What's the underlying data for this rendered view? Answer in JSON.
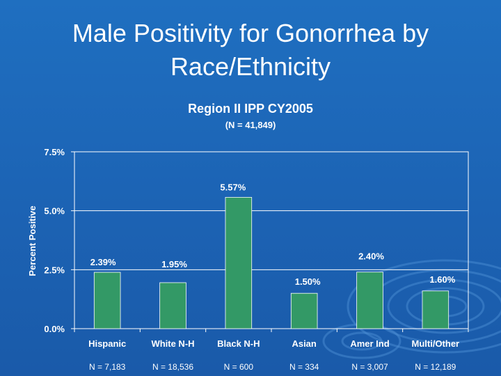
{
  "slide": {
    "title_line1": "Male Positivity for Gonorrhea by",
    "title_line2": "Race/Ethnicity"
  },
  "chart_data": {
    "type": "bar",
    "title": "Region II IPP CY2005",
    "subtitle": "(N = 41,849)",
    "xlabel": "",
    "ylabel": "Percent Positive",
    "categories": [
      "Hispanic",
      "White N-H",
      "Black N-H",
      "Asian",
      "Amer Ind",
      "Multi/Other"
    ],
    "values": [
      2.39,
      1.95,
      5.57,
      1.5,
      2.4,
      1.6
    ],
    "data_labels": [
      "2.39%",
      "1.95%",
      "5.57%",
      "1.50%",
      "2.40%",
      "1.60%"
    ],
    "sample_sizes": [
      "N = 7,183",
      "N = 18,536",
      "N = 600",
      "N = 334",
      "N = 3,007",
      "N = 12,189"
    ],
    "ylim": [
      0,
      7.5
    ],
    "yticks": [
      0,
      2.5,
      5.0,
      7.5
    ],
    "ytick_labels": [
      "0.0%",
      "2.5%",
      "5.0%",
      "7.5%"
    ],
    "grid": true,
    "bar_color": "#339966",
    "gridline_color": "#ffffff"
  }
}
